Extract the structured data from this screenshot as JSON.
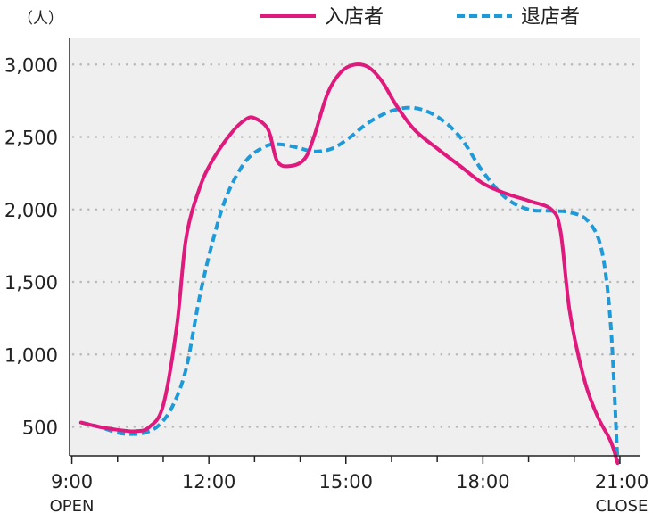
{
  "chart_data": {
    "type": "line",
    "unit_label": "（人）",
    "x_ticks": [
      {
        "value": 9,
        "label": "9:00",
        "sublabel": "OPEN"
      },
      {
        "value": 12,
        "label": "12:00",
        "sublabel": ""
      },
      {
        "value": 15,
        "label": "15:00",
        "sublabel": ""
      },
      {
        "value": 18,
        "label": "18:00",
        "sublabel": ""
      },
      {
        "value": 21,
        "label": "21:00",
        "sublabel": "CLOSE"
      }
    ],
    "y_ticks": [
      {
        "value": 500,
        "label": "500"
      },
      {
        "value": 1000,
        "label": "1,000"
      },
      {
        "value": 1500,
        "label": "1,500"
      },
      {
        "value": 2000,
        "label": "2,000"
      },
      {
        "value": 2500,
        "label": "2,500"
      },
      {
        "value": 3000,
        "label": "3,000"
      }
    ],
    "xlim": [
      8.95,
      21.45
    ],
    "ylim": [
      300,
      3180
    ],
    "grid": true,
    "legend_position": "top-right",
    "series": [
      {
        "name": "入店者",
        "color": "#e0197d",
        "dash": "solid",
        "points": [
          [
            9.2,
            530
          ],
          [
            9.6,
            500
          ],
          [
            10.0,
            480
          ],
          [
            10.4,
            470
          ],
          [
            10.7,
            500
          ],
          [
            11.0,
            650
          ],
          [
            11.3,
            1200
          ],
          [
            11.5,
            1800
          ],
          [
            11.8,
            2150
          ],
          [
            12.1,
            2350
          ],
          [
            12.5,
            2530
          ],
          [
            12.8,
            2620
          ],
          [
            13.0,
            2630
          ],
          [
            13.3,
            2550
          ],
          [
            13.5,
            2330
          ],
          [
            13.8,
            2300
          ],
          [
            14.1,
            2350
          ],
          [
            14.3,
            2500
          ],
          [
            14.6,
            2800
          ],
          [
            14.9,
            2950
          ],
          [
            15.2,
            3000
          ],
          [
            15.5,
            2980
          ],
          [
            15.8,
            2880
          ],
          [
            16.1,
            2720
          ],
          [
            16.5,
            2550
          ],
          [
            17.0,
            2420
          ],
          [
            17.5,
            2300
          ],
          [
            18.0,
            2180
          ],
          [
            18.5,
            2110
          ],
          [
            19.0,
            2060
          ],
          [
            19.5,
            2000
          ],
          [
            19.7,
            1850
          ],
          [
            19.9,
            1300
          ],
          [
            20.2,
            850
          ],
          [
            20.5,
            580
          ],
          [
            20.8,
            400
          ],
          [
            20.95,
            250
          ]
        ]
      },
      {
        "name": "退店者",
        "color": "#1e9ad9",
        "dash": "dashed",
        "points": [
          [
            9.2,
            530
          ],
          [
            9.6,
            500
          ],
          [
            10.0,
            460
          ],
          [
            10.3,
            450
          ],
          [
            10.6,
            460
          ],
          [
            10.9,
            510
          ],
          [
            11.2,
            640
          ],
          [
            11.5,
            900
          ],
          [
            11.8,
            1400
          ],
          [
            12.1,
            1800
          ],
          [
            12.4,
            2100
          ],
          [
            12.8,
            2330
          ],
          [
            13.2,
            2430
          ],
          [
            13.5,
            2450
          ],
          [
            13.9,
            2430
          ],
          [
            14.3,
            2400
          ],
          [
            14.7,
            2420
          ],
          [
            15.1,
            2500
          ],
          [
            15.5,
            2600
          ],
          [
            16.0,
            2680
          ],
          [
            16.5,
            2700
          ],
          [
            17.0,
            2640
          ],
          [
            17.5,
            2500
          ],
          [
            18.0,
            2260
          ],
          [
            18.5,
            2080
          ],
          [
            19.0,
            2000
          ],
          [
            19.5,
            1990
          ],
          [
            19.9,
            1980
          ],
          [
            20.3,
            1920
          ],
          [
            20.6,
            1720
          ],
          [
            20.8,
            1200
          ],
          [
            20.95,
            250
          ]
        ]
      }
    ]
  }
}
